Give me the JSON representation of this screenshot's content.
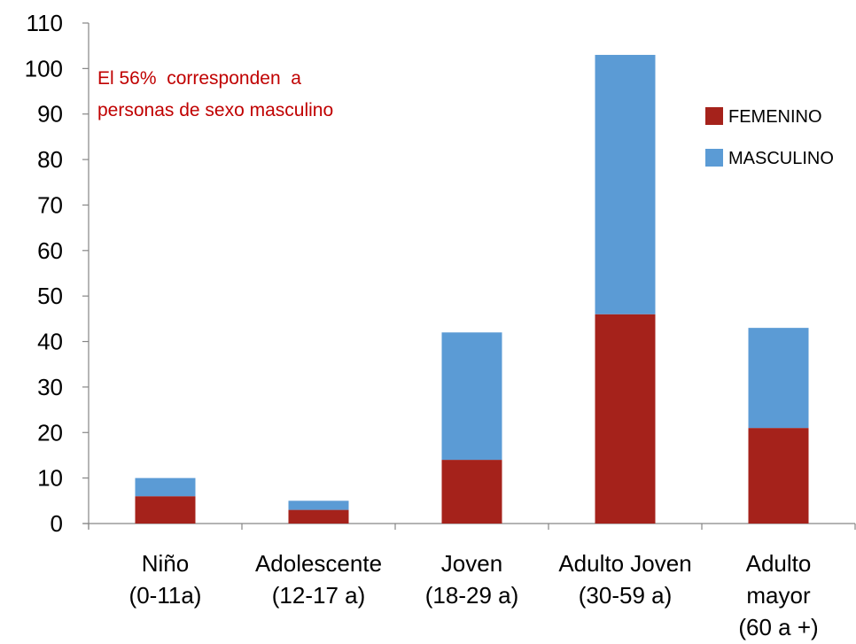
{
  "chart_data": {
    "type": "bar",
    "stacked": true,
    "categories": [
      [
        "Niño",
        "(0-11a)"
      ],
      [
        "Adolescente",
        "(12-17 a)"
      ],
      [
        "Joven",
        "(18-29 a)"
      ],
      [
        "Adulto Joven",
        "(30-59 a)"
      ],
      [
        "Adulto",
        "mayor",
        "(60 a +)"
      ]
    ],
    "series": [
      {
        "name": "FEMENINO",
        "color": "#a5221b",
        "values": [
          6,
          3,
          14,
          46,
          21
        ]
      },
      {
        "name": "MASCULINO",
        "color": "#5b9bd5",
        "values": [
          4,
          2,
          28,
          57,
          22
        ]
      }
    ],
    "ylim": [
      0,
      110
    ],
    "yticks": [
      0,
      10,
      20,
      30,
      40,
      50,
      60,
      70,
      80,
      90,
      100,
      110
    ],
    "grid": false,
    "legend": "right",
    "annotation": {
      "lines": [
        "El 56%  corresponden  a",
        "personas de sexo masculino"
      ],
      "color": "#c00000"
    }
  }
}
